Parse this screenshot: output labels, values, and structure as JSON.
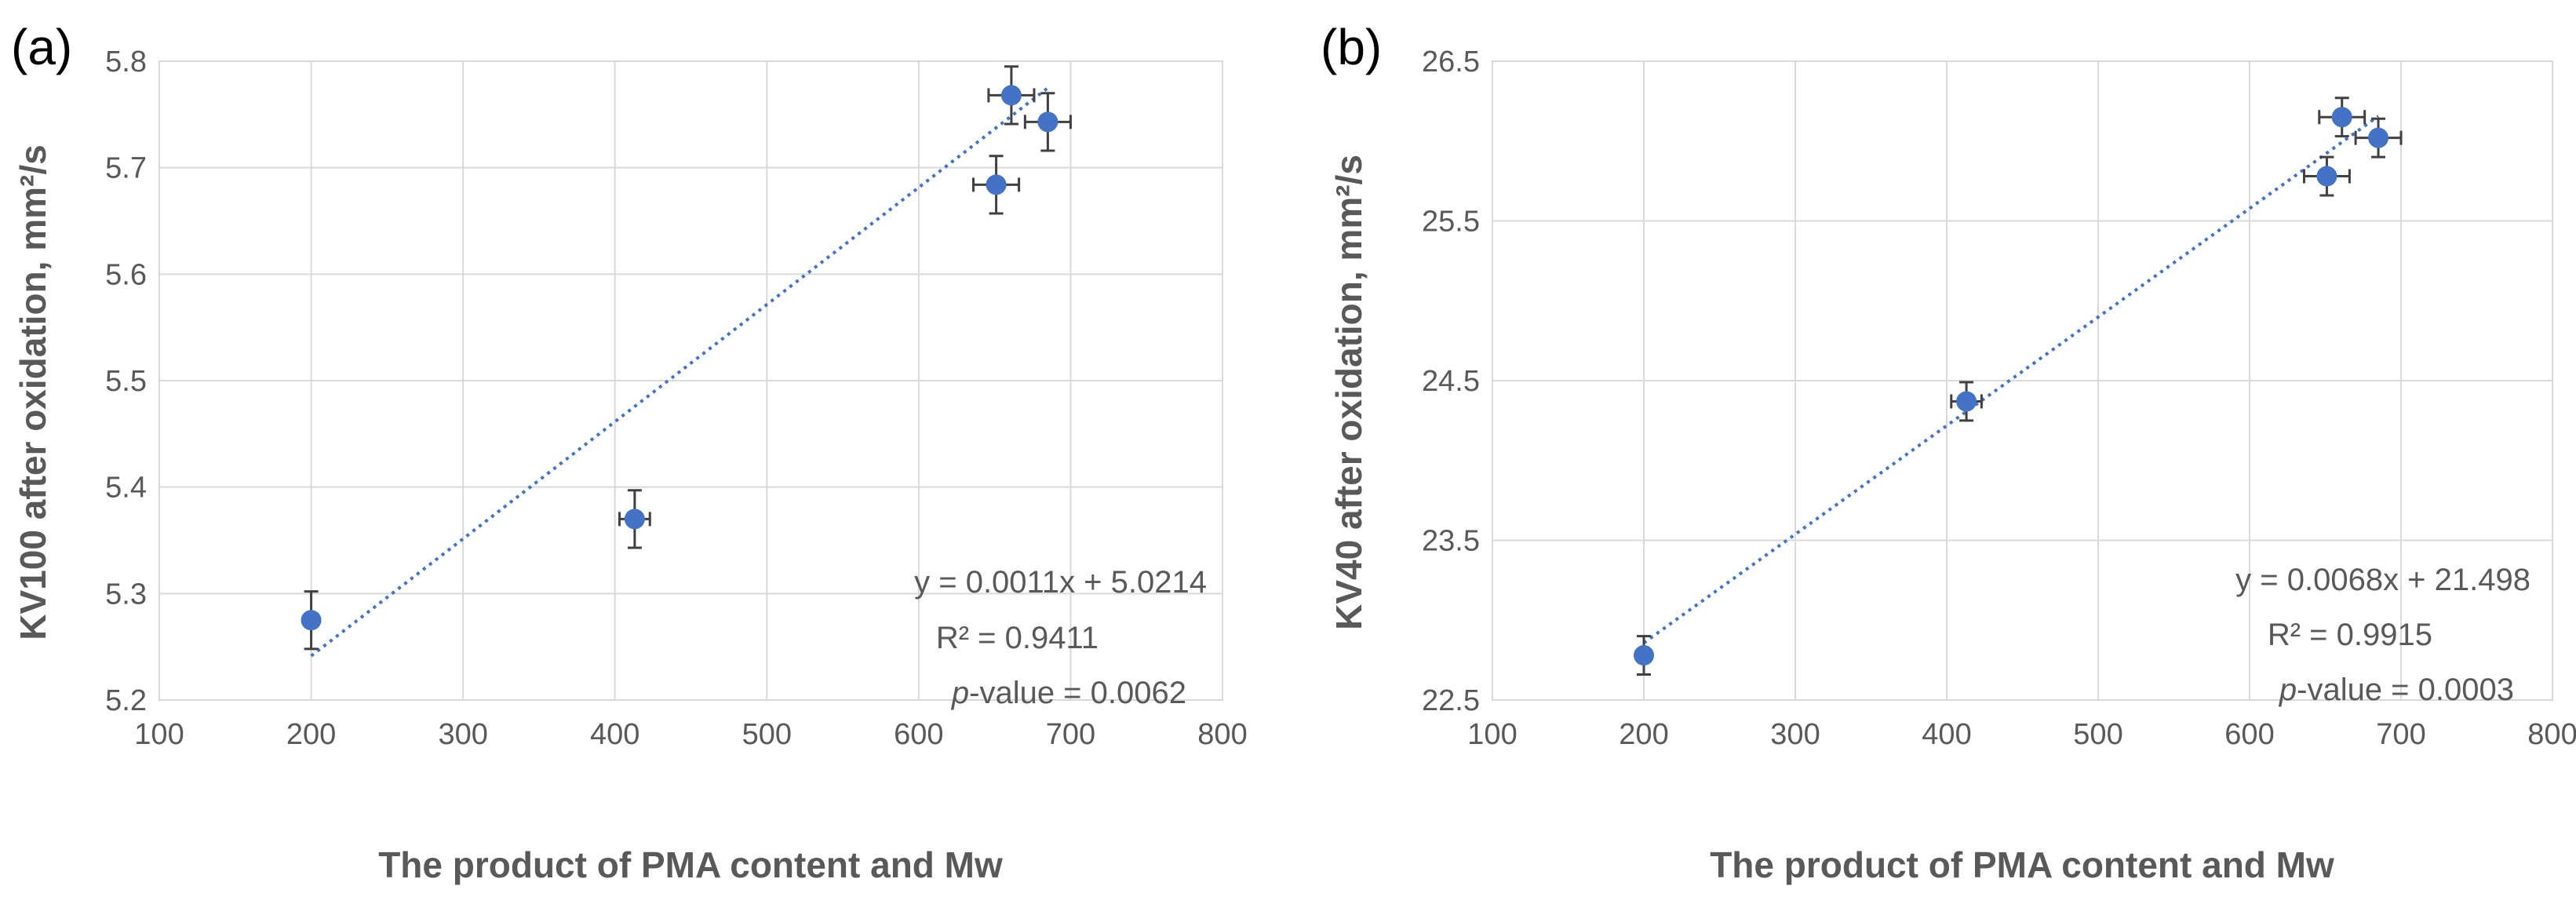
{
  "chart_data": [
    {
      "type": "scatter",
      "panel_label": "(a)",
      "xlabel": "The product of PMA content and Mw",
      "ylabel": "KV100 after oxidation, mm²/s",
      "xlim": [
        100,
        800
      ],
      "ylim": [
        5.2,
        5.8
      ],
      "x_ticks": [
        "100",
        "200",
        "300",
        "400",
        "500",
        "600",
        "700",
        "800"
      ],
      "y_ticks": [
        "5.2",
        "5.3",
        "5.4",
        "5.5",
        "5.6",
        "5.7",
        "5.8"
      ],
      "x_tick_values": [
        100,
        200,
        300,
        400,
        500,
        600,
        700,
        800
      ],
      "y_tick_values": [
        5.2,
        5.3,
        5.4,
        5.5,
        5.6,
        5.7,
        5.8
      ],
      "points": [
        {
          "x": 200,
          "y": 5.275,
          "xerr": 0,
          "yerr": 0.027
        },
        {
          "x": 413,
          "y": 5.37,
          "xerr": 10,
          "yerr": 0.027
        },
        {
          "x": 651,
          "y": 5.684,
          "xerr": 15,
          "yerr": 0.027
        },
        {
          "x": 661,
          "y": 5.768,
          "xerr": 15,
          "yerr": 0.027
        },
        {
          "x": 685,
          "y": 5.743,
          "xerr": 15,
          "yerr": 0.027
        }
      ],
      "trendline": {
        "slope": 0.0011,
        "intercept": 5.0214,
        "x_from": 200,
        "x_to": 685
      },
      "grid": true,
      "annotation": {
        "equation": "y = 0.0011x + 5.0214",
        "r2": "R² = 0.9411",
        "pvalue_prefix": "p",
        "pvalue_suffix": "-value = 0.0062"
      }
    },
    {
      "type": "scatter",
      "panel_label": "(b)",
      "xlabel": "The product of PMA content and Mw",
      "ylabel": "KV40 after oxidation, mm²/s",
      "xlim": [
        100,
        800
      ],
      "ylim": [
        22.5,
        26.5
      ],
      "x_ticks": [
        "100",
        "200",
        "300",
        "400",
        "500",
        "600",
        "700",
        "800"
      ],
      "y_ticks": [
        "22.5",
        "23.5",
        "24.5",
        "25.5",
        "26.5"
      ],
      "x_tick_values": [
        100,
        200,
        300,
        400,
        500,
        600,
        700,
        800
      ],
      "y_tick_values": [
        22.5,
        23.5,
        24.5,
        25.5,
        26.5
      ],
      "points": [
        {
          "x": 200,
          "y": 22.78,
          "xerr": 0,
          "yerr": 0.12
        },
        {
          "x": 413,
          "y": 24.37,
          "xerr": 10,
          "yerr": 0.12
        },
        {
          "x": 651,
          "y": 25.78,
          "xerr": 15,
          "yerr": 0.12
        },
        {
          "x": 661,
          "y": 26.15,
          "xerr": 15,
          "yerr": 0.12
        },
        {
          "x": 685,
          "y": 26.02,
          "xerr": 15,
          "yerr": 0.12
        }
      ],
      "trendline": {
        "slope": 0.0068,
        "intercept": 21.498,
        "x_from": 200,
        "x_to": 685
      },
      "grid": true,
      "annotation": {
        "equation": "y = 0.0068x + 21.498",
        "r2": "R² = 0.9915",
        "pvalue_prefix": "p",
        "pvalue_suffix": "-value = 0.0003"
      }
    }
  ],
  "colors": {
    "marker": "#4472c4",
    "trendline": "#4472c4",
    "errorbar": "#404040",
    "grid": "#d9d9d9",
    "text": "#595959"
  }
}
